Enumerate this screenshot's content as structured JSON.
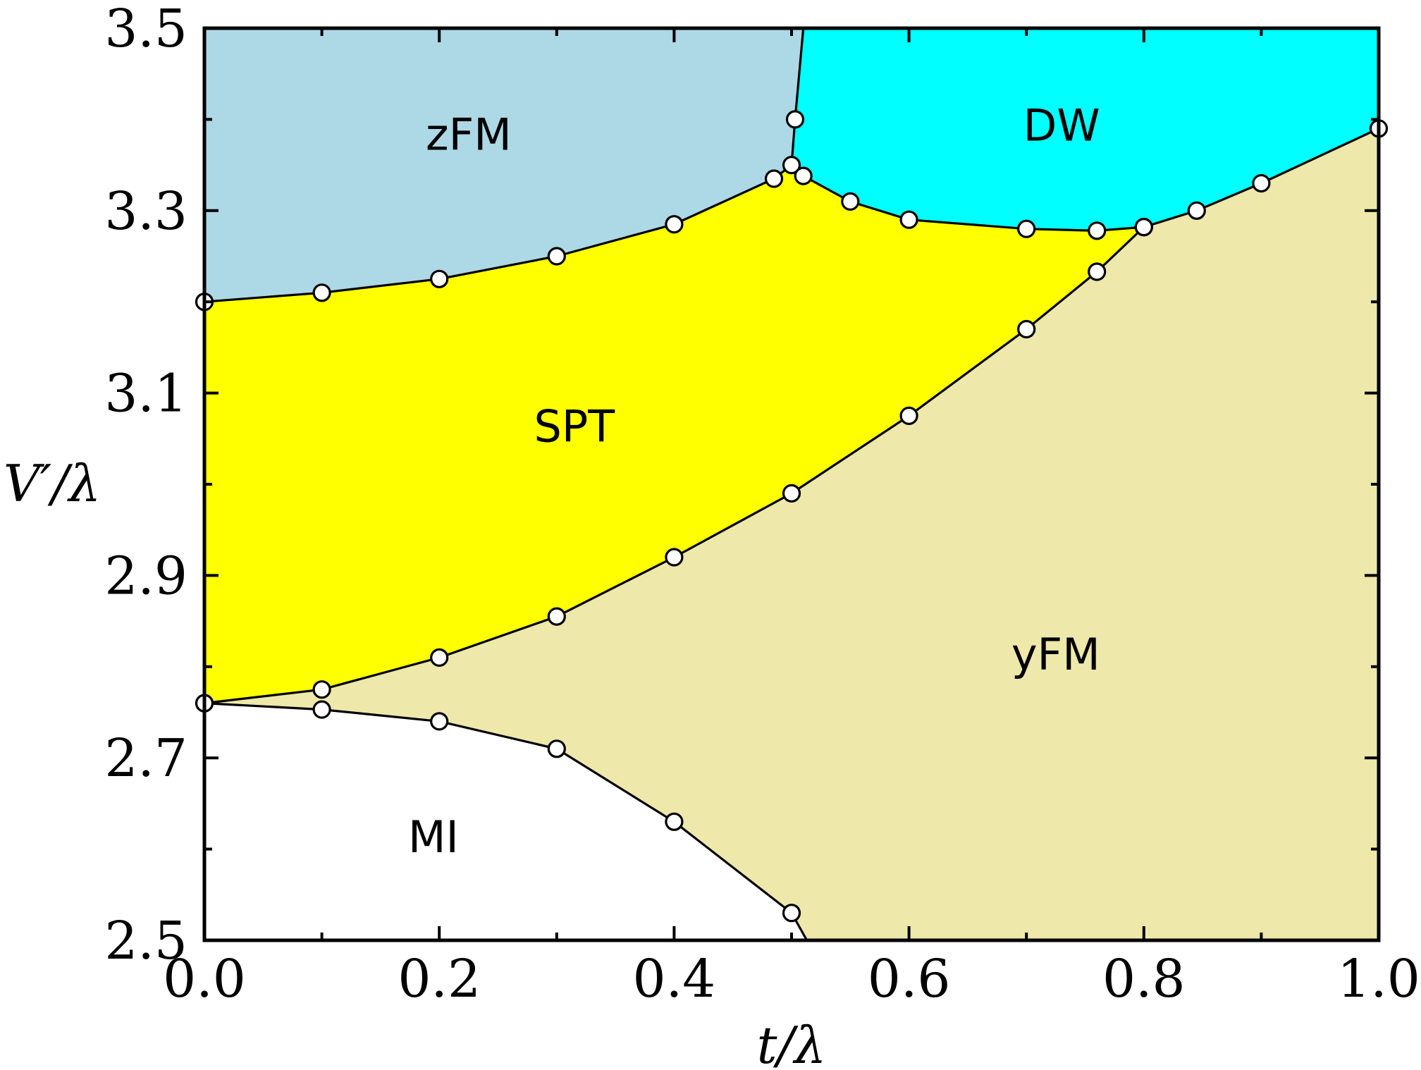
{
  "chart_data": {
    "type": "area",
    "title": "",
    "xlabel": "t/λ",
    "ylabel": "V′/λ",
    "xlim": [
      0.0,
      1.0
    ],
    "ylim": [
      2.5,
      3.5
    ],
    "x_ticks": [
      "0.0",
      "0.2",
      "0.4",
      "0.6",
      "0.8",
      "1.0"
    ],
    "y_ticks": [
      "2.5",
      "2.7",
      "2.9",
      "3.1",
      "3.3",
      "3.5"
    ],
    "grid": false,
    "legend": "none",
    "regions": [
      {
        "name": "zFM",
        "color": "#add8e6",
        "label_at": [
          0.225,
          3.38
        ]
      },
      {
        "name": "DW",
        "color": "#00ffff",
        "label_at": [
          0.73,
          3.39
        ]
      },
      {
        "name": "SPT",
        "color": "#ffff00",
        "label_at": [
          0.315,
          3.06
        ]
      },
      {
        "name": "yFM",
        "color": "#eee8aa",
        "label_at": [
          0.725,
          2.81
        ]
      },
      {
        "name": "MI",
        "color": "#ffffff",
        "label_at": [
          0.195,
          2.61
        ]
      }
    ],
    "boundaries": [
      {
        "between": "zFM / SPT",
        "points": [
          [
            0.0,
            3.2
          ],
          [
            0.1,
            3.21
          ],
          [
            0.2,
            3.225
          ],
          [
            0.3,
            3.25
          ],
          [
            0.4,
            3.285
          ],
          [
            0.485,
            3.335
          ],
          [
            0.5,
            3.35
          ]
        ]
      },
      {
        "between": "zFM / DW",
        "points": [
          [
            0.5,
            3.35
          ],
          [
            0.503,
            3.4
          ],
          [
            0.51,
            3.5
          ]
        ]
      },
      {
        "between": "DW / SPT",
        "points": [
          [
            0.5,
            3.35
          ],
          [
            0.51,
            3.338
          ],
          [
            0.55,
            3.31
          ],
          [
            0.6,
            3.29
          ],
          [
            0.7,
            3.28
          ],
          [
            0.76,
            3.278
          ],
          [
            0.8,
            3.282
          ]
        ]
      },
      {
        "between": "DW / yFM",
        "points": [
          [
            0.8,
            3.282
          ],
          [
            0.845,
            3.3
          ],
          [
            0.9,
            3.33
          ],
          [
            1.0,
            3.39
          ]
        ]
      },
      {
        "between": "SPT / yFM",
        "points": [
          [
            0.0,
            2.76
          ],
          [
            0.1,
            2.775
          ],
          [
            0.2,
            2.81
          ],
          [
            0.3,
            2.855
          ],
          [
            0.4,
            2.92
          ],
          [
            0.5,
            2.99
          ],
          [
            0.6,
            3.075
          ],
          [
            0.7,
            3.17
          ],
          [
            0.76,
            3.233
          ],
          [
            0.8,
            3.282
          ]
        ]
      },
      {
        "between": "MI / yFM",
        "points": [
          [
            0.0,
            2.76
          ],
          [
            0.1,
            2.753
          ],
          [
            0.2,
            2.74
          ],
          [
            0.3,
            2.71
          ],
          [
            0.4,
            2.63
          ],
          [
            0.5,
            2.53
          ],
          [
            0.513,
            2.5
          ]
        ]
      }
    ]
  }
}
